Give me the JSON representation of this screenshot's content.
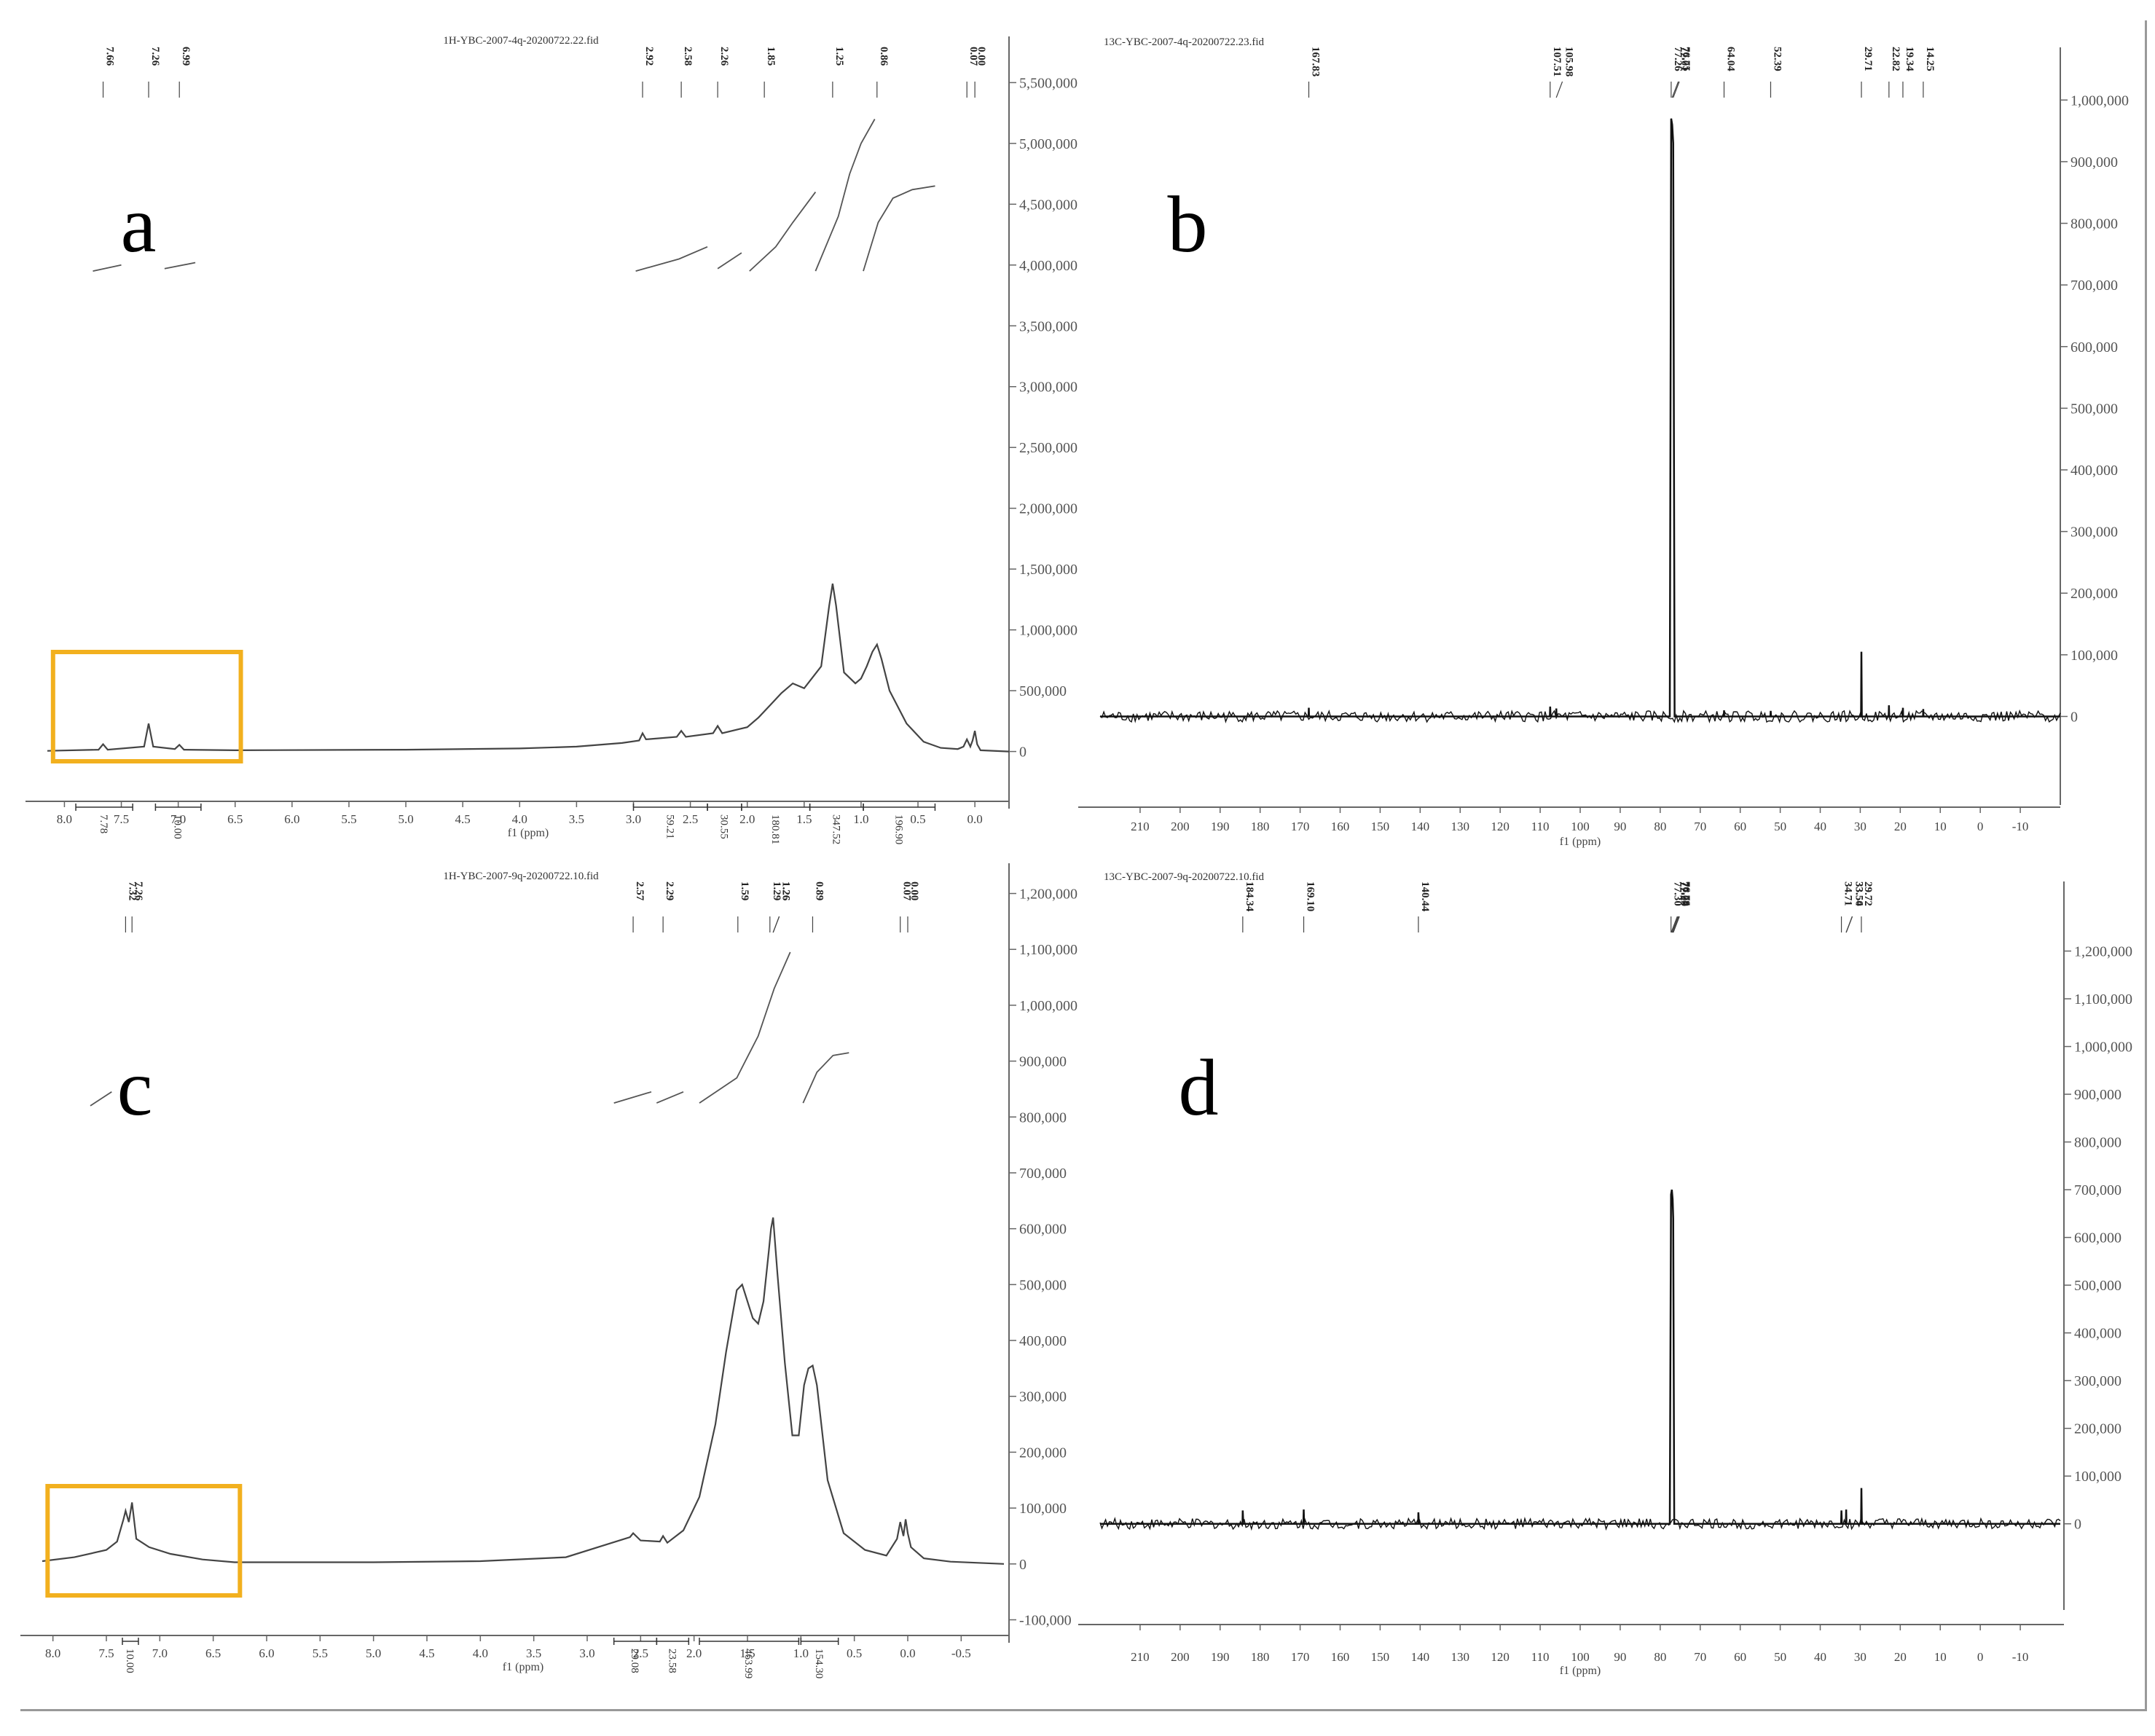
{
  "chart_data": [
    {
      "panel_label": "a",
      "type": "line",
      "title": "1H-YBC-2007-4q-20200722.22.fid",
      "xlabel": "f1 (ppm)",
      "xlim": [
        8.15,
        -0.3
      ],
      "ylim": [
        -350000,
        5700000
      ],
      "x_ticks": [
        "8.0",
        "7.5",
        "7.0",
        "6.5",
        "6.0",
        "5.5",
        "5.0",
        "4.5",
        "4.0",
        "3.5",
        "3.0",
        "2.5",
        "2.0",
        "1.5",
        "1.0",
        "0.5",
        "0.0"
      ],
      "y_ticks": [
        "5,500,000",
        "5,000,000",
        "4,500,000",
        "4,000,000",
        "3,500,000",
        "3,000,000",
        "2,500,000",
        "2,000,000",
        "1,500,000",
        "1,000,000",
        "500,000",
        "0"
      ],
      "peak_labels": [
        "7.66",
        "7.26",
        "6.99",
        "2.92",
        "2.58",
        "2.26",
        "1.85",
        "1.25",
        "0.86",
        "0.07",
        "0.00"
      ],
      "integrals": [
        {
          "from": 7.9,
          "to": 7.4,
          "value": "7.78"
        },
        {
          "from": 7.2,
          "to": 6.8,
          "value": "10.00"
        },
        {
          "from": 3.0,
          "to": 2.35,
          "value": "59.21"
        },
        {
          "from": 2.35,
          "to": 2.05,
          "value": "30.55"
        },
        {
          "from": 2.05,
          "to": 1.45,
          "value": "180.81"
        },
        {
          "from": 1.45,
          "to": 0.98,
          "value": "347.52"
        },
        {
          "from": 0.98,
          "to": 0.35,
          "value": "196.90"
        }
      ],
      "highlight_box": {
        "from": 8.1,
        "to": 6.45
      },
      "series": [
        {
          "x": [
            8.15,
            7.7,
            7.66,
            7.62,
            7.3,
            7.26,
            7.22,
            7.03,
            6.99,
            6.95,
            6.5,
            5.0,
            4.0,
            3.5,
            3.1,
            2.95,
            2.92,
            2.89,
            2.62,
            2.58,
            2.54,
            2.3,
            2.26,
            2.22,
            2.0,
            1.9,
            1.85,
            1.8,
            1.7,
            1.6,
            1.5,
            1.35,
            1.28,
            1.25,
            1.22,
            1.15,
            1.05,
            1.0,
            0.95,
            0.9,
            0.86,
            0.82,
            0.75,
            0.6,
            0.45,
            0.3,
            0.15,
            0.1,
            0.07,
            0.04,
            0.02,
            0.0,
            -0.02,
            -0.05,
            -0.3
          ],
          "y": [
            5000,
            15000,
            60000,
            15000,
            40000,
            230000,
            40000,
            20000,
            55000,
            15000,
            10000,
            15000,
            25000,
            40000,
            70000,
            90000,
            150000,
            100000,
            120000,
            170000,
            120000,
            150000,
            210000,
            150000,
            200000,
            280000,
            330000,
            380000,
            480000,
            560000,
            520000,
            700000,
            1200000,
            1380000,
            1200000,
            650000,
            560000,
            600000,
            700000,
            820000,
            880000,
            760000,
            500000,
            230000,
            80000,
            30000,
            20000,
            40000,
            100000,
            40000,
            90000,
            170000,
            60000,
            10000,
            0
          ]
        }
      ],
      "integral_curves": [
        {
          "x": [
            7.75,
            7.5
          ],
          "y": [
            3950000,
            4000000
          ]
        },
        {
          "x": [
            7.12,
            6.85
          ],
          "y": [
            3970000,
            4020000
          ]
        },
        {
          "x": [
            2.98,
            2.6,
            2.35
          ],
          "y": [
            3950000,
            4050000,
            4150000
          ]
        },
        {
          "x": [
            2.26,
            2.05
          ],
          "y": [
            3970000,
            4100000
          ]
        },
        {
          "x": [
            1.98,
            1.75,
            1.6,
            1.4
          ],
          "y": [
            3950000,
            4150000,
            4350000,
            4600000
          ]
        },
        {
          "x": [
            1.4,
            1.2,
            1.1,
            1.0,
            0.88
          ],
          "y": [
            3950000,
            4400000,
            4750000,
            5000000,
            5200000
          ]
        },
        {
          "x": [
            0.98,
            0.85,
            0.72,
            0.55,
            0.35
          ],
          "y": [
            3950000,
            4350000,
            4550000,
            4620000,
            4650000
          ]
        }
      ]
    },
    {
      "panel_label": "b",
      "type": "line",
      "title": "13C-YBC-2007-4q-20200722.23.fid",
      "xlabel": "f1 (ppm)",
      "xlim": [
        220,
        -20
      ],
      "ylim": [
        -120000,
        1050000
      ],
      "x_ticks": [
        "210",
        "200",
        "190",
        "180",
        "170",
        "160",
        "150",
        "140",
        "130",
        "120",
        "110",
        "100",
        "90",
        "80",
        "70",
        "60",
        "50",
        "40",
        "30",
        "20",
        "10",
        "0",
        "-10"
      ],
      "y_ticks": [
        "1,000,000",
        "900,000",
        "800,000",
        "700,000",
        "600,000",
        "500,000",
        "400,000",
        "300,000",
        "200,000",
        "100,000",
        "0"
      ],
      "peak_labels": [
        "167.83",
        "107.51",
        "105.98",
        "77.26",
        "77.01",
        "76.75",
        "64.04",
        "52.39",
        "29.71",
        "22.82",
        "19.34",
        "14.25"
      ],
      "series": [
        {
          "x": [
            220,
            167.9,
            167.83,
            167.76,
            107.6,
            107.51,
            107.4,
            106.05,
            105.98,
            105.9,
            77.6,
            77.26,
            77.0,
            76.75,
            76.4,
            64.1,
            64.04,
            64.0,
            52.45,
            52.39,
            52.3,
            29.8,
            29.71,
            29.6,
            22.9,
            22.82,
            22.75,
            19.4,
            19.34,
            19.28,
            14.3,
            14.25,
            14.2,
            -20
          ],
          "y": [
            0,
            0,
            14000,
            0,
            0,
            16000,
            0,
            0,
            13000,
            0,
            0,
            970000,
            960000,
            930000,
            0,
            0,
            10000,
            0,
            0,
            9000,
            0,
            0,
            105000,
            0,
            0,
            18000,
            0,
            0,
            14000,
            0,
            0,
            12000,
            0,
            0
          ]
        }
      ]
    },
    {
      "panel_label": "c",
      "type": "line",
      "title": "1H-YBC-2007-9q-20200722.10.fid",
      "xlabel": "f1 (ppm)",
      "xlim": [
        8.1,
        -0.9
      ],
      "ylim": [
        -115000,
        1215000
      ],
      "x_ticks": [
        "8.0",
        "7.5",
        "7.0",
        "6.5",
        "6.0",
        "5.5",
        "5.0",
        "4.5",
        "4.0",
        "3.5",
        "3.0",
        "2.5",
        "2.0",
        "1.5",
        "1.0",
        "0.5",
        "0.0",
        "-0.5"
      ],
      "y_ticks": [
        "1,200,000",
        "1,100,000",
        "1,000,000",
        "900,000",
        "800,000",
        "700,000",
        "600,000",
        "500,000",
        "400,000",
        "300,000",
        "200,000",
        "100,000",
        "0",
        "-100,000"
      ],
      "peak_labels": [
        "7.32",
        "7.26",
        "2.57",
        "2.29",
        "1.59",
        "1.29",
        "1.26",
        "1.26",
        "0.89",
        "0.07",
        "0.00"
      ],
      "integrals": [
        {
          "from": 7.35,
          "to": 7.2,
          "value": "10.00"
        },
        {
          "from": 2.75,
          "to": 2.35,
          "value": "29.08"
        },
        {
          "from": 2.35,
          "to": 2.05,
          "value": "23.58"
        },
        {
          "from": 1.95,
          "to": 1.02,
          "value": "463.99"
        },
        {
          "from": 1.0,
          "to": 0.65,
          "value": "154.30"
        }
      ],
      "highlight_box": {
        "from": 8.05,
        "to": 6.25
      },
      "series": [
        {
          "x": [
            8.1,
            7.8,
            7.5,
            7.4,
            7.34,
            7.32,
            7.29,
            7.26,
            7.22,
            7.1,
            6.9,
            6.6,
            6.3,
            5.0,
            4.0,
            3.2,
            2.9,
            2.6,
            2.57,
            2.5,
            2.32,
            2.29,
            2.25,
            2.1,
            1.95,
            1.8,
            1.7,
            1.6,
            1.55,
            1.5,
            1.45,
            1.4,
            1.35,
            1.3,
            1.28,
            1.26,
            1.22,
            1.15,
            1.08,
            1.02,
            0.97,
            0.93,
            0.89,
            0.85,
            0.75,
            0.6,
            0.4,
            0.2,
            0.1,
            0.07,
            0.04,
            0.02,
            0.0,
            -0.03,
            -0.15,
            -0.4,
            -0.9
          ],
          "y": [
            5000,
            12000,
            25000,
            40000,
            80000,
            95000,
            75000,
            110000,
            45000,
            30000,
            18000,
            8000,
            3000,
            3000,
            5000,
            12000,
            30000,
            48000,
            55000,
            42000,
            40000,
            50000,
            38000,
            60000,
            120000,
            250000,
            380000,
            490000,
            500000,
            470000,
            440000,
            430000,
            470000,
            560000,
            600000,
            620000,
            520000,
            360000,
            230000,
            230000,
            320000,
            350000,
            355000,
            320000,
            150000,
            55000,
            25000,
            15000,
            45000,
            75000,
            50000,
            80000,
            55000,
            30000,
            10000,
            4000,
            0
          ]
        }
      ],
      "integral_curves": [
        {
          "x": [
            7.65,
            7.45
          ],
          "y": [
            820000,
            845000
          ]
        },
        {
          "x": [
            2.75,
            2.4
          ],
          "y": [
            825000,
            845000
          ]
        },
        {
          "x": [
            2.35,
            2.1
          ],
          "y": [
            825000,
            845000
          ]
        },
        {
          "x": [
            1.95,
            1.6,
            1.4,
            1.25,
            1.1
          ],
          "y": [
            825000,
            870000,
            945000,
            1030000,
            1095000
          ]
        },
        {
          "x": [
            0.98,
            0.85,
            0.7,
            0.55
          ],
          "y": [
            825000,
            880000,
            910000,
            915000
          ]
        }
      ]
    },
    {
      "panel_label": "d",
      "type": "line",
      "title": "13C-YBC-2007-9q-20200722.10.fid",
      "xlabel": "f1 (ppm)",
      "xlim": [
        220,
        -20
      ],
      "ylim": [
        -150000,
        1300000
      ],
      "x_ticks": [
        "210",
        "200",
        "190",
        "180",
        "170",
        "160",
        "150",
        "140",
        "130",
        "120",
        "110",
        "100",
        "90",
        "80",
        "70",
        "60",
        "50",
        "40",
        "30",
        "20",
        "10",
        "0",
        "-10"
      ],
      "y_ticks": [
        "1,200,000",
        "1,100,000",
        "1,000,000",
        "900,000",
        "800,000",
        "700,000",
        "600,000",
        "500,000",
        "400,000",
        "300,000",
        "200,000",
        "100,000",
        "0"
      ],
      "peak_labels": [
        "184.34",
        "169.10",
        "140.44",
        "77.30",
        "77.25",
        "77.04",
        "77.00",
        "76.79",
        "76.74",
        "76.74",
        "34.71",
        "33.54",
        "33.50",
        "29.72"
      ],
      "series": [
        {
          "x": [
            220,
            184.4,
            184.34,
            184.2,
            169.2,
            169.1,
            169.0,
            140.5,
            140.44,
            140.3,
            77.6,
            77.3,
            77.1,
            76.9,
            76.74,
            76.5,
            34.8,
            34.71,
            34.6,
            33.6,
            33.52,
            33.45,
            29.8,
            29.72,
            29.6,
            -20
          ],
          "y": [
            0,
            0,
            28000,
            0,
            0,
            30000,
            0,
            0,
            24000,
            0,
            0,
            690000,
            700000,
            680000,
            640000,
            0,
            0,
            28000,
            0,
            0,
            30000,
            0,
            0,
            75000,
            0,
            0
          ]
        }
      ]
    }
  ]
}
